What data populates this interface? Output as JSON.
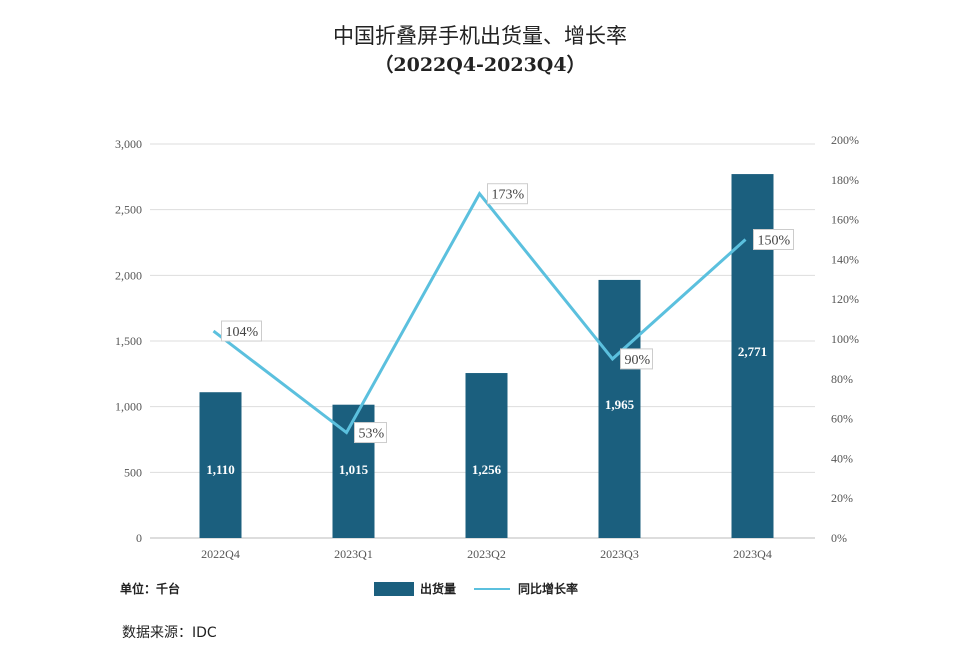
{
  "title": "中国折叠屏手机出货量、增长率",
  "subtitle": "（2022Q4-2023Q4）",
  "unit_note": "单位：千台",
  "source": "数据来源：IDC",
  "colors": {
    "bar": "#1b5f7e",
    "line": "#5bc0de",
    "grid": "#dddddd"
  },
  "chart_data": {
    "type": "bar+line",
    "categories": [
      "2022Q4",
      "2023Q1",
      "2023Q2",
      "2023Q3",
      "2023Q4"
    ],
    "series": [
      {
        "name": "出货量",
        "type": "bar",
        "axis": "left",
        "values": [
          1110,
          1015,
          1256,
          1965,
          2771
        ],
        "labels": [
          "1,110",
          "1,015",
          "1,256",
          "1,965",
          "2,771"
        ]
      },
      {
        "name": "同比增长率",
        "type": "line",
        "axis": "right",
        "values": [
          104,
          53,
          173,
          90,
          150
        ],
        "labels": [
          "104%",
          "53%",
          "173%",
          "90%",
          "150%"
        ]
      }
    ],
    "left_axis": {
      "ylim": [
        0,
        3000
      ],
      "ticks": [
        "0",
        "500",
        "1,000",
        "1,500",
        "2,000",
        "2,500",
        "3,000"
      ]
    },
    "right_axis": {
      "ylim": [
        0,
        200
      ],
      "ticks": [
        "0%",
        "20%",
        "40%",
        "60%",
        "80%",
        "100%",
        "120%",
        "140%",
        "160%",
        "180%",
        "200%"
      ]
    },
    "grid": true,
    "legend_position": "bottom"
  }
}
